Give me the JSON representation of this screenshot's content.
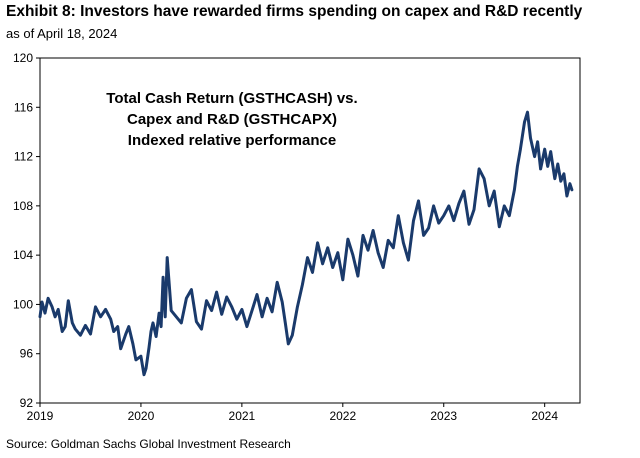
{
  "header": {
    "title": "Exhibit 8: Investors have rewarded firms spending on capex and R&D recently",
    "subtitle": "as of April 18, 2024"
  },
  "footer": {
    "source": "Source: Goldman Sachs Global Investment Research"
  },
  "colors": {
    "line": "#1a3a6b",
    "frame": "#000000"
  },
  "chart_data": {
    "type": "line",
    "title": "Total Cash Return (GSTHCASH) vs. Capex and R&D (GSTHCAPX) Indexed relative performance",
    "annotation_lines": [
      "Total Cash Return (GSTHCASH) vs.",
      "Capex and R&D (GSTHCAPX)",
      "Indexed relative performance"
    ],
    "xlabel": "",
    "ylabel": "",
    "xlim": [
      2019.0,
      2024.35
    ],
    "ylim": [
      92,
      120
    ],
    "x_ticks": [
      2019,
      2020,
      2021,
      2022,
      2023,
      2024
    ],
    "x_tick_labels": [
      "2019",
      "2020",
      "2021",
      "2022",
      "2023",
      "2024"
    ],
    "y_ticks": [
      92,
      96,
      100,
      104,
      108,
      112,
      116,
      120
    ],
    "y_tick_labels": [
      "92",
      "96",
      "100",
      "104",
      "108",
      "112",
      "116",
      "120"
    ],
    "grid": false,
    "series": [
      {
        "name": "GSTHCASH vs GSTHCAPX",
        "x": [
          2019.0,
          2019.02,
          2019.05,
          2019.08,
          2019.12,
          2019.15,
          2019.18,
          2019.22,
          2019.25,
          2019.28,
          2019.32,
          2019.35,
          2019.4,
          2019.45,
          2019.5,
          2019.55,
          2019.6,
          2019.65,
          2019.7,
          2019.73,
          2019.77,
          2019.8,
          2019.85,
          2019.88,
          2019.92,
          2019.95,
          2020.0,
          2020.03,
          2020.05,
          2020.08,
          2020.1,
          2020.12,
          2020.15,
          2020.18,
          2020.2,
          2020.22,
          2020.24,
          2020.26,
          2020.3,
          2020.35,
          2020.4,
          2020.45,
          2020.5,
          2020.55,
          2020.6,
          2020.65,
          2020.7,
          2020.75,
          2020.8,
          2020.85,
          2020.9,
          2020.95,
          2021.0,
          2021.05,
          2021.1,
          2021.15,
          2021.2,
          2021.25,
          2021.3,
          2021.35,
          2021.4,
          2021.43,
          2021.46,
          2021.5,
          2021.55,
          2021.6,
          2021.65,
          2021.7,
          2021.75,
          2021.8,
          2021.85,
          2021.9,
          2021.95,
          2022.0,
          2022.05,
          2022.1,
          2022.15,
          2022.2,
          2022.25,
          2022.3,
          2022.35,
          2022.4,
          2022.45,
          2022.5,
          2022.55,
          2022.6,
          2022.65,
          2022.7,
          2022.75,
          2022.8,
          2022.85,
          2022.9,
          2022.95,
          2023.0,
          2023.05,
          2023.1,
          2023.15,
          2023.2,
          2023.25,
          2023.3,
          2023.35,
          2023.4,
          2023.45,
          2023.5,
          2023.55,
          2023.6,
          2023.65,
          2023.7,
          2023.73,
          2023.76,
          2023.8,
          2023.83,
          2023.86,
          2023.9,
          2023.93,
          2023.96,
          2024.0,
          2024.03,
          2024.06,
          2024.1,
          2024.13,
          2024.16,
          2024.19,
          2024.22,
          2024.25,
          2024.27
        ],
        "values": [
          99.0,
          100.2,
          99.3,
          100.5,
          99.8,
          99.0,
          99.6,
          97.8,
          98.2,
          100.3,
          98.5,
          98.0,
          97.5,
          98.3,
          97.6,
          99.8,
          99.0,
          99.6,
          98.8,
          97.8,
          98.2,
          96.4,
          97.6,
          98.2,
          96.8,
          95.5,
          95.8,
          94.3,
          94.8,
          96.5,
          97.8,
          98.5,
          97.4,
          99.3,
          98.2,
          102.2,
          99.0,
          103.8,
          99.5,
          99.0,
          98.5,
          100.5,
          101.2,
          98.6,
          98.0,
          100.3,
          99.5,
          101.0,
          99.2,
          100.6,
          99.8,
          98.8,
          99.6,
          98.2,
          99.5,
          100.8,
          99.0,
          100.5,
          99.4,
          101.8,
          100.2,
          98.5,
          96.8,
          97.5,
          99.8,
          101.6,
          103.8,
          102.6,
          105.0,
          103.3,
          104.6,
          103.0,
          104.2,
          102.0,
          105.3,
          104.0,
          102.3,
          105.6,
          104.4,
          106.0,
          104.2,
          103.0,
          105.2,
          104.6,
          107.2,
          105.0,
          103.6,
          106.8,
          108.4,
          105.6,
          106.2,
          108.0,
          106.6,
          107.2,
          108.0,
          106.8,
          108.2,
          109.2,
          106.5,
          107.7,
          111.0,
          110.2,
          108.0,
          109.2,
          106.3,
          108.0,
          107.2,
          109.3,
          111.2,
          112.6,
          114.8,
          115.6,
          113.5,
          112.0,
          113.2,
          111.0,
          112.6,
          111.2,
          112.4,
          110.2,
          111.4,
          110.0,
          110.6,
          108.8,
          109.8,
          109.3
        ]
      }
    ]
  }
}
